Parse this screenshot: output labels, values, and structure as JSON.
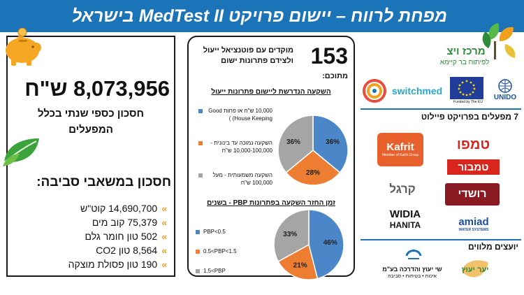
{
  "header": {
    "title": "מפחת לרווח – יישום פרויקט MedTest II בישראל"
  },
  "left_panel": {
    "savings_value": "8,073,956 ש\"ח",
    "savings_description": "חסכון כספי שנתי בכלל המפעלים",
    "env_title": "חסכון במשאבי סביבה:",
    "env_items": [
      "14,690,700 קוט\"ש",
      "75,379 קוב מים",
      "502 טון חומר גלם",
      "8,564 טון CO2",
      "190 טון פסולת מוצקה"
    ],
    "bullet_glyph": "»"
  },
  "middle_panel": {
    "count": "153",
    "count_description": "מוקדים עם פוטנציאל ייעול ולצידם פתרונות ישום",
    "among_label": "מתוכם:",
    "chart1": {
      "title": "השקעה הנדרשת ליישום פתרונות ייעול",
      "legend": [
        "10,000 ש\"ח או פחות Good House Keeping) )",
        "השקעה נמוכה עד בינונית - 10,000-100,000 ש\"ח",
        "השקעה משמעותית - מעל 100,000 ש\"ח"
      ],
      "slice_labels": [
        "36%",
        "28%",
        "36%"
      ]
    },
    "chart2": {
      "title": "זמן החזר השקעה בפתרונות PBP - בשנים",
      "legend": [
        "PBP<0.5",
        "0.5<PBP<1.5",
        "1.5<PBP"
      ],
      "slice_labels": [
        "46%",
        "21%",
        "33%"
      ]
    }
  },
  "chart_data": [
    {
      "type": "pie",
      "title": "השקעה הנדרשת ליישום פתרונות ייעול",
      "categories": [
        "10,000 ש\"ח או פחות Good House Keeping) )",
        "השקעה נמוכה עד בינונית - 10,000-100,000 ש\"ח",
        "השקעה משמעותית - מעל 100,000 ש\"ח"
      ],
      "values": [
        36,
        28,
        36
      ],
      "colors": [
        "#4a86c8",
        "#ed7d31",
        "#a5a5a5"
      ]
    },
    {
      "type": "pie",
      "title": "זמן החזר השקעה בפתרונות PBP - בשנים",
      "categories": [
        "PBP<0.5",
        "0.5<PBP<1.5",
        "1.5<PBP"
      ],
      "values": [
        46,
        21,
        33
      ],
      "colors": [
        "#4a86c8",
        "#ed7d31",
        "#a5a5a5"
      ]
    }
  ],
  "right_panel": {
    "center_name": "מרכז ויצ",
    "center_subtitle": "לפיתוח בר קיימא",
    "partners": {
      "switchmed": "switchmed",
      "eu_caption": "Funded by The EU",
      "unido": "UNIDO"
    },
    "factories_title": "7 מפעלים בפרויקט פיילוט",
    "factories": {
      "kafrit": "Kafrit",
      "kafrit_sub": "Member of Kafrit Group",
      "tempo": "טמפו",
      "tambur": "טמבור",
      "kargal": "קרגל",
      "roshdi": "רושדי",
      "widia": "WIDIA",
      "hanita": "HANITA",
      "amiad": "amiad",
      "amiad_sub": "WATER SYSTEMS"
    },
    "advisors_title": "יועצים מלווים",
    "advisors": {
      "firm": "שי יעוץ והדרכה בע\"מ",
      "firm_sub": "איכות • בטיחות • סביבה",
      "yaar": "יער יעוץ"
    }
  },
  "colors": {
    "header": "#1b73b8",
    "blue": "#4a86c8",
    "orange": "#ed7d31",
    "gray": "#a5a5a5",
    "bullet": "#f2a11f",
    "leaf": "#3aa33c"
  }
}
